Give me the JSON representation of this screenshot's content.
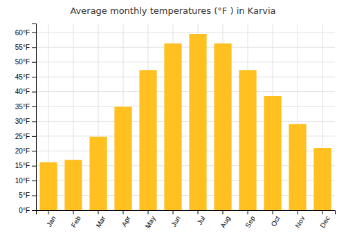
{
  "chart_data": {
    "type": "bar",
    "title": "Average monthly temperatures (°F ) in Karvia",
    "categories": [
      "Jan",
      "Feb",
      "Mar",
      "Apr",
      "May",
      "Jun",
      "Jul",
      "Aug",
      "Sep",
      "Oct",
      "Nov",
      "Dec"
    ],
    "values": [
      16.2,
      17.0,
      24.8,
      34.9,
      47.3,
      56.3,
      59.5,
      56.3,
      47.3,
      38.5,
      29.1,
      21.0
    ],
    "color": "#FFC020",
    "ylim": [
      0,
      63
    ],
    "yticks": [
      {
        "value": 0,
        "label": "0°F"
      },
      {
        "value": 5,
        "label": "5°F"
      },
      {
        "value": 10,
        "label": "10°F"
      },
      {
        "value": 15,
        "label": "15°F"
      },
      {
        "value": 20,
        "label": "20°F"
      },
      {
        "value": 25,
        "label": "25°F"
      },
      {
        "value": 30,
        "label": "30°F"
      },
      {
        "value": 35,
        "label": "35°F"
      },
      {
        "value": 40,
        "label": "40°F"
      },
      {
        "value": 45,
        "label": "45°F"
      },
      {
        "value": 50,
        "label": "50°F"
      },
      {
        "value": 55,
        "label": "55°F"
      },
      {
        "value": 60,
        "label": "60°F"
      }
    ],
    "grid": true
  }
}
